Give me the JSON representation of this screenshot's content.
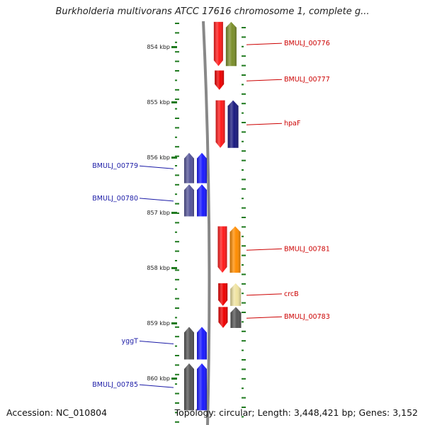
{
  "header": {
    "title": "Burkholderia multivorans ATCC 17616 chromosome 1, complete g..."
  },
  "footer": {
    "accession": "Accession: NC_010804",
    "topology": "Topology: circular; Length: 3,448,421 bp; Genes: 3,152"
  },
  "map": {
    "scale_unit": "kbp",
    "ticks_kbp": [
      854,
      855,
      856,
      857,
      858,
      859,
      860
    ],
    "colors": {
      "left_label": "#1a1aa6",
      "right_label": "#cc0000",
      "tick": "#1f7a1f",
      "backbone": "#888888"
    },
    "genes": [
      {
        "name": "BMULJ_00776",
        "side": "right",
        "start": 853.55,
        "end": 854.35,
        "strand": "-",
        "color": "#ff1a1a",
        "cog_color": "#7b8f2a"
      },
      {
        "name": "BMULJ_00777",
        "side": "right",
        "start": 854.43,
        "end": 854.78,
        "strand": "-",
        "color": "#ee0000",
        "cog_color": ""
      },
      {
        "name": "hpaF",
        "side": "right",
        "start": 854.97,
        "end": 855.83,
        "strand": "-",
        "color": "#ff1a1a",
        "cog_color": "#1a1a80"
      },
      {
        "name": "BMULJ_00779",
        "side": "left",
        "start": 855.92,
        "end": 856.47,
        "strand": "+",
        "color": "#1a1aff",
        "cog_color": "#555599"
      },
      {
        "name": "BMULJ_00780",
        "side": "left",
        "start": 856.49,
        "end": 857.07,
        "strand": "+",
        "color": "#1a1aff",
        "cog_color": "#555599"
      },
      {
        "name": "BMULJ_00781",
        "side": "right",
        "start": 857.25,
        "end": 858.09,
        "strand": "-",
        "color": "#ff1a1a",
        "cog_color": "#ff8c00"
      },
      {
        "name": "crcB",
        "side": "right",
        "start": 858.28,
        "end": 858.69,
        "strand": "-",
        "color": "#ee0000",
        "cog_color": "#efe3a0"
      },
      {
        "name": "BMULJ_00783",
        "side": "right",
        "start": 858.71,
        "end": 859.09,
        "strand": "-",
        "color": "#ee0000",
        "cog_color": "#555555"
      },
      {
        "name": "yggT",
        "side": "left",
        "start": 859.07,
        "end": 859.66,
        "strand": "+",
        "color": "#1a1aff",
        "cog_color": "#555555"
      },
      {
        "name": "BMULJ_00785",
        "side": "left",
        "start": 859.73,
        "end": 860.58,
        "strand": "+",
        "color": "#1a1aff",
        "cog_color": "#555555"
      }
    ]
  }
}
